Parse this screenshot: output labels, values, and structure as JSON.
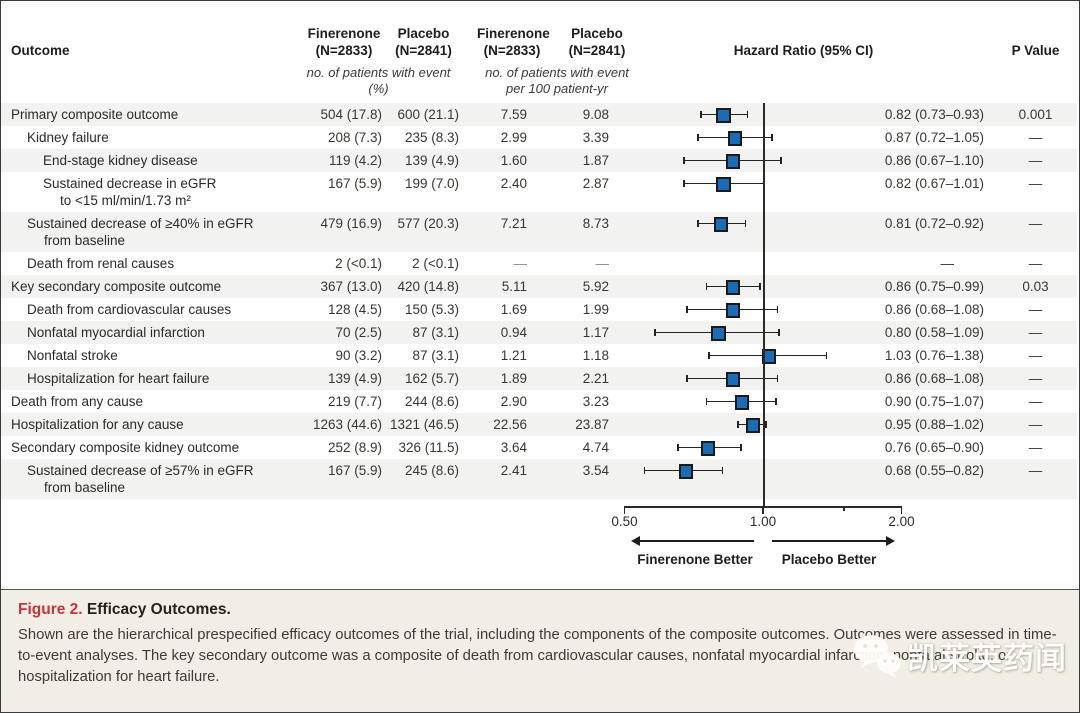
{
  "header": {
    "outcome": "Outcome",
    "groups": [
      {
        "name": "Finerenone",
        "n": "(N=2833)"
      },
      {
        "name": "Placebo",
        "n": "(N=2841)"
      },
      {
        "name": "Finerenone",
        "n": "(N=2833)"
      },
      {
        "name": "Placebo",
        "n": "(N=2841)"
      }
    ],
    "sub_events": "no. of patients with event (%)",
    "sub_rate": "no. of patients with event per 100 patient-yr",
    "hazard": "Hazard Ratio (95% CI)",
    "pvalue": "P Value"
  },
  "chart_data": {
    "type": "forest",
    "title": "Efficacy Outcomes",
    "axis": {
      "scale": "log",
      "min": 0.5,
      "max": 2.0,
      "ticks": [
        0.5,
        1.0,
        2.0
      ],
      "tick_labels": [
        "0.50",
        "1.00",
        "2.00"
      ],
      "minor_ticks": [
        1.5
      ],
      "refline": 1.0,
      "left_label": "Finerenone Better",
      "right_label": "Placebo Better"
    },
    "rows": [
      {
        "label": "Primary composite outcome",
        "label2": "",
        "indent": 0,
        "fin_n": "504 (17.8)",
        "pla_n": "600 (21.1)",
        "fin_rate": "7.59",
        "pla_rate": "9.08",
        "hr": 0.82,
        "lo": 0.73,
        "hi": 0.93,
        "hr_text": "0.82 (0.73–0.93)",
        "p": "0.001",
        "shaded": true
      },
      {
        "label": "Kidney failure",
        "label2": "",
        "indent": 1,
        "fin_n": "208 (7.3)",
        "pla_n": "235 (8.3)",
        "fin_rate": "2.99",
        "pla_rate": "3.39",
        "hr": 0.87,
        "lo": 0.72,
        "hi": 1.05,
        "hr_text": "0.87 (0.72–1.05)",
        "p": "—",
        "shaded": false
      },
      {
        "label": "End-stage kidney disease",
        "label2": "",
        "indent": 2,
        "fin_n": "119 (4.2)",
        "pla_n": "139 (4.9)",
        "fin_rate": "1.60",
        "pla_rate": "1.87",
        "hr": 0.86,
        "lo": 0.67,
        "hi": 1.1,
        "hr_text": "0.86 (0.67–1.10)",
        "p": "—",
        "shaded": true
      },
      {
        "label": "Sustained decrease in eGFR",
        "label2": "to <15 ml/min/1.73 m²",
        "indent": 2,
        "fin_n": "167 (5.9)",
        "pla_n": "199 (7.0)",
        "fin_rate": "2.40",
        "pla_rate": "2.87",
        "hr": 0.82,
        "lo": 0.67,
        "hi": 1.01,
        "hr_text": "0.82 (0.67–1.01)",
        "p": "—",
        "shaded": false
      },
      {
        "label": "Sustained decrease of ≥40% in eGFR",
        "label2": "from baseline",
        "indent": 1,
        "fin_n": "479 (16.9)",
        "pla_n": "577 (20.3)",
        "fin_rate": "7.21",
        "pla_rate": "8.73",
        "hr": 0.81,
        "lo": 0.72,
        "hi": 0.92,
        "hr_text": "0.81 (0.72–0.92)",
        "p": "—",
        "shaded": true
      },
      {
        "label": "Death from renal causes",
        "label2": "",
        "indent": 1,
        "fin_n": "2 (<0.1)",
        "pla_n": "2 (<0.1)",
        "fin_rate": "—",
        "pla_rate": "—",
        "hr": null,
        "lo": null,
        "hi": null,
        "hr_text": "—",
        "p": "—",
        "shaded": false
      },
      {
        "label": "Key secondary composite outcome",
        "label2": "",
        "indent": 0,
        "fin_n": "367 (13.0)",
        "pla_n": "420 (14.8)",
        "fin_rate": "5.11",
        "pla_rate": "5.92",
        "hr": 0.86,
        "lo": 0.75,
        "hi": 0.99,
        "hr_text": "0.86 (0.75–0.99)",
        "p": "0.03",
        "shaded": true
      },
      {
        "label": "Death from cardiovascular causes",
        "label2": "",
        "indent": 1,
        "fin_n": "128 (4.5)",
        "pla_n": "150 (5.3)",
        "fin_rate": "1.69",
        "pla_rate": "1.99",
        "hr": 0.86,
        "lo": 0.68,
        "hi": 1.08,
        "hr_text": "0.86 (0.68–1.08)",
        "p": "—",
        "shaded": false
      },
      {
        "label": "Nonfatal myocardial infarction",
        "label2": "",
        "indent": 1,
        "fin_n": "70 (2.5)",
        "pla_n": "87 (3.1)",
        "fin_rate": "0.94",
        "pla_rate": "1.17",
        "hr": 0.8,
        "lo": 0.58,
        "hi": 1.09,
        "hr_text": "0.80 (0.58–1.09)",
        "p": "—",
        "shaded": true
      },
      {
        "label": "Nonfatal stroke",
        "label2": "",
        "indent": 1,
        "fin_n": "90 (3.2)",
        "pla_n": "87 (3.1)",
        "fin_rate": "1.21",
        "pla_rate": "1.18",
        "hr": 1.03,
        "lo": 0.76,
        "hi": 1.38,
        "hr_text": "1.03 (0.76–1.38)",
        "p": "—",
        "shaded": false
      },
      {
        "label": "Hospitalization for heart failure",
        "label2": "",
        "indent": 1,
        "fin_n": "139 (4.9)",
        "pla_n": "162 (5.7)",
        "fin_rate": "1.89",
        "pla_rate": "2.21",
        "hr": 0.86,
        "lo": 0.68,
        "hi": 1.08,
        "hr_text": "0.86 (0.68–1.08)",
        "p": "—",
        "shaded": true
      },
      {
        "label": "Death from any cause",
        "label2": "",
        "indent": 0,
        "fin_n": "219 (7.7)",
        "pla_n": "244 (8.6)",
        "fin_rate": "2.90",
        "pla_rate": "3.23",
        "hr": 0.9,
        "lo": 0.75,
        "hi": 1.07,
        "hr_text": "0.90 (0.75–1.07)",
        "p": "—",
        "shaded": false
      },
      {
        "label": "Hospitalization for any cause",
        "label2": "",
        "indent": 0,
        "fin_n": "1263 (44.6)",
        "pla_n": "1321 (46.5)",
        "fin_rate": "22.56",
        "pla_rate": "23.87",
        "hr": 0.95,
        "lo": 0.88,
        "hi": 1.02,
        "hr_text": "0.95 (0.88–1.02)",
        "p": "—",
        "shaded": true
      },
      {
        "label": "Secondary composite kidney outcome",
        "label2": "",
        "indent": 0,
        "fin_n": "252 (8.9)",
        "pla_n": "326 (11.5)",
        "fin_rate": "3.64",
        "pla_rate": "4.74",
        "hr": 0.76,
        "lo": 0.65,
        "hi": 0.9,
        "hr_text": "0.76 (0.65–0.90)",
        "p": "—",
        "shaded": false
      },
      {
        "label": "Sustained decrease of ≥57% in eGFR",
        "label2": "from baseline",
        "indent": 1,
        "fin_n": "167 (5.9)",
        "pla_n": "245 (8.6)",
        "fin_rate": "2.41",
        "pla_rate": "3.54",
        "hr": 0.68,
        "lo": 0.55,
        "hi": 0.82,
        "hr_text": "0.68 (0.55–0.82)",
        "p": "—",
        "shaded": true
      }
    ]
  },
  "caption": {
    "fig_label": "Figure 2.",
    "fig_title": "Efficacy Outcomes.",
    "body": "Shown are the hierarchical prespecified efficacy outcomes of the trial, including the components of the composite outcomes. Outcomes were assessed in time-to-event analyses. The key secondary outcome was a composite of death from cardiovascular causes, nonfatal myocardial infarction, nonfatal stroke, or hospitalization for heart failure."
  },
  "watermark": {
    "text": "凯莱英药闻"
  },
  "colors": {
    "marker_blue": "#1a6db5",
    "stripe": "#f2f2f0",
    "caption_bg": "#f2eee5",
    "figure_red": "#c4353b",
    "line_black": "#25221f"
  }
}
